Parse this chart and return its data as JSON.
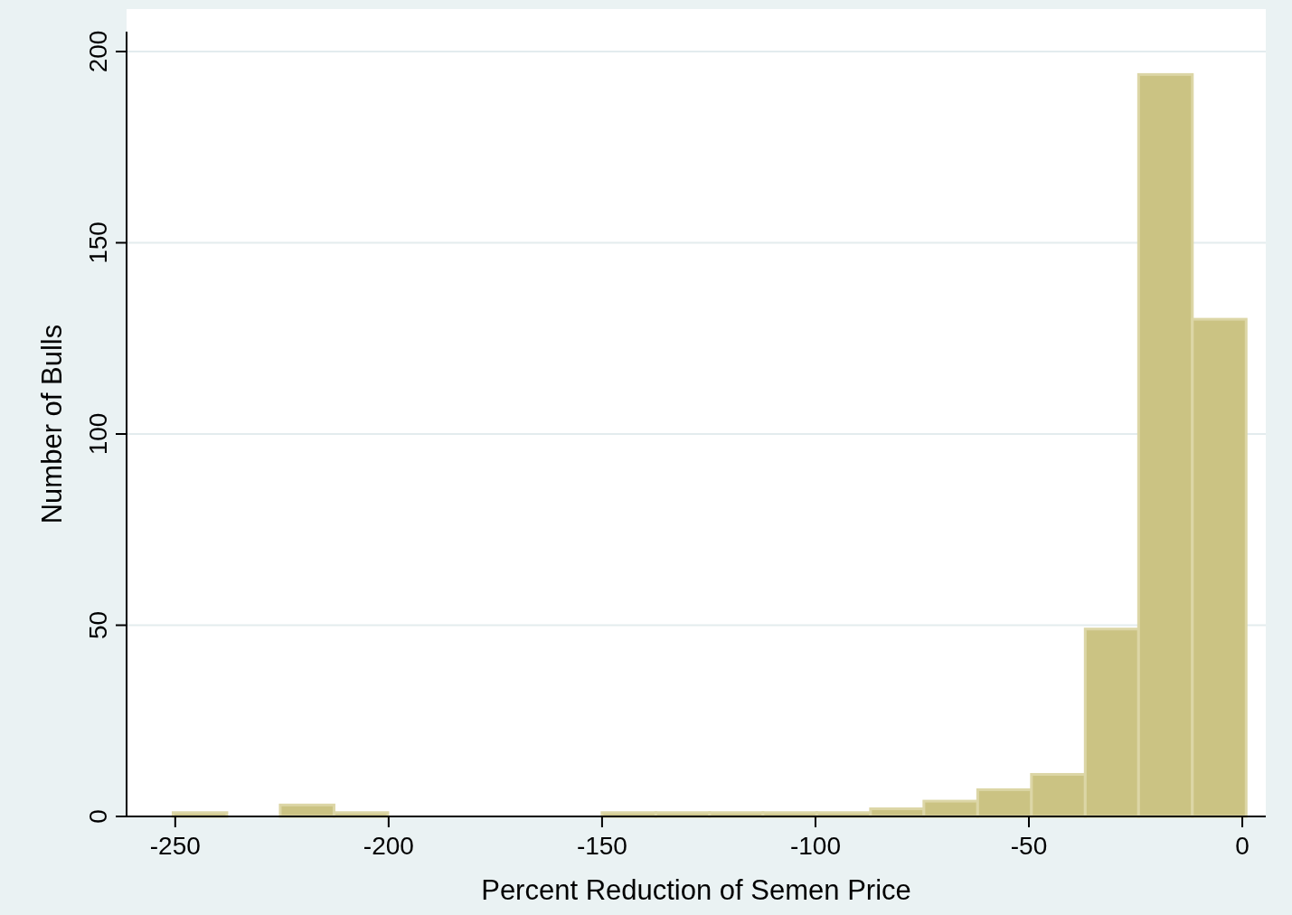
{
  "chart_data": {
    "type": "histogram",
    "xlabel": "Percent Reduction of Semen Price",
    "ylabel": "Number of Bulls",
    "bins": [
      -250.5,
      -237.9,
      -225.4,
      -212.8,
      -200.2,
      -187.7,
      -175.1,
      -162.5,
      -150.0,
      -137.4,
      -124.8,
      -112.3,
      -99.7,
      -87.1,
      -74.6,
      -62.0,
      -49.4,
      -36.8,
      -24.3,
      -11.7,
      0.9
    ],
    "values": [
      1,
      0,
      3,
      1,
      0,
      0,
      0,
      0,
      1,
      1,
      1,
      1,
      1,
      2,
      4,
      7,
      11,
      49,
      194,
      130
    ],
    "color": "#cbc383",
    "xlim": [
      -261.4,
      5.5
    ],
    "xticks": [
      -250,
      -200,
      -150,
      -100,
      -50,
      0
    ],
    "ylim": [
      0,
      205.2
    ],
    "yticks": [
      0,
      50,
      100,
      150,
      200
    ],
    "grid": "y"
  }
}
